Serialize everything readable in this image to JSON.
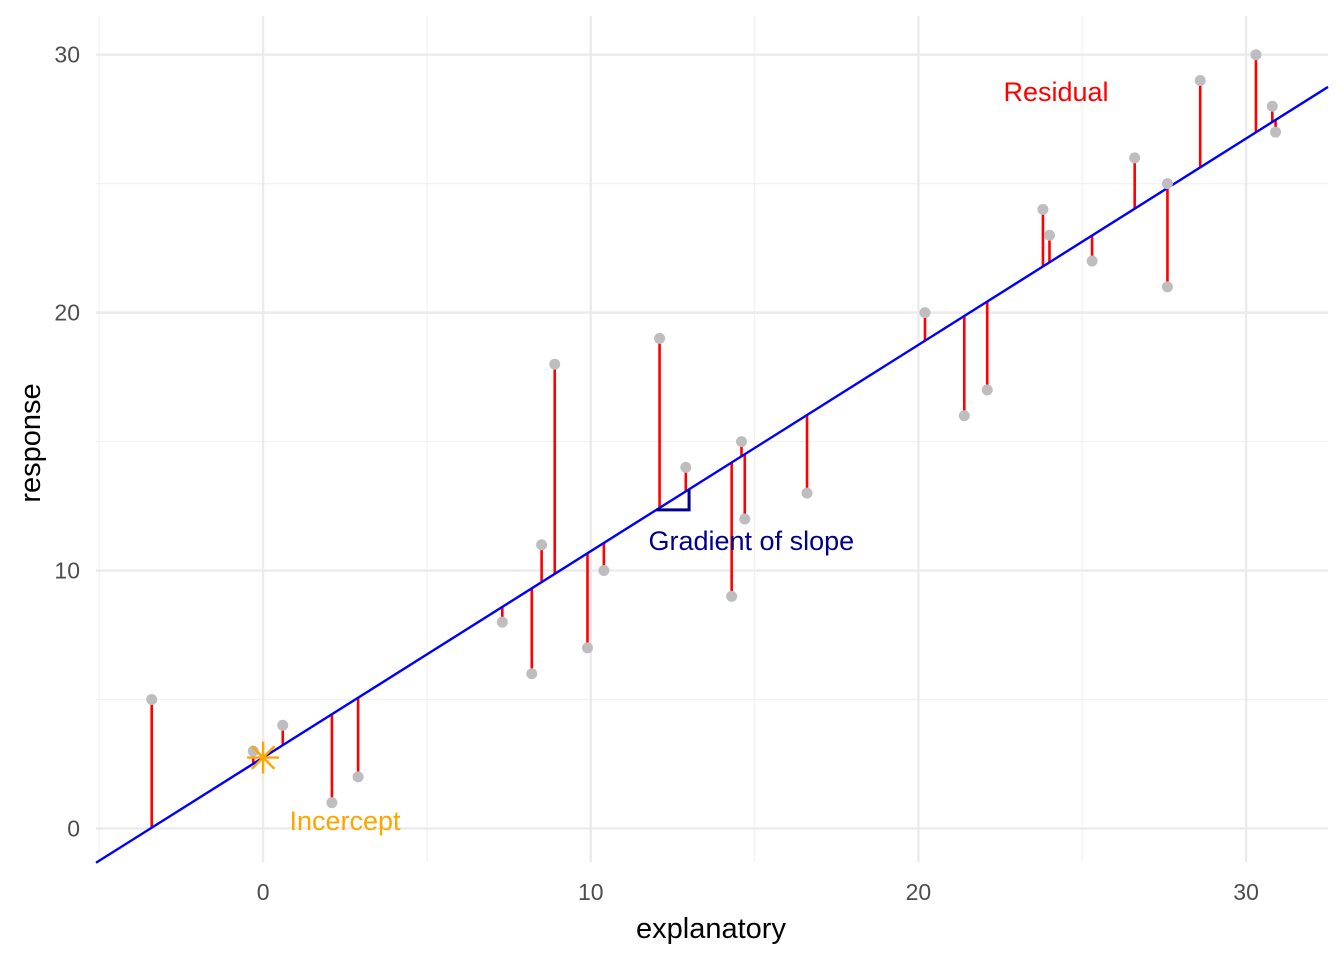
{
  "chart_data": {
    "type": "scatter",
    "xlabel": "explanatory",
    "ylabel": "response",
    "xlim": [
      -5.1,
      32.5
    ],
    "ylim": [
      -1.3,
      31.5
    ],
    "x_ticks": [
      0,
      10,
      20,
      30
    ],
    "y_ticks": [
      0,
      10,
      20,
      30
    ],
    "x_tick_labels": [
      "0",
      "10",
      "20",
      "30"
    ],
    "y_tick_labels": [
      "0",
      "10",
      "20",
      "30"
    ],
    "grid": true,
    "regression_line": {
      "intercept": 2.75,
      "slope": 0.8
    },
    "points": [
      {
        "x": -3.4,
        "y": 5
      },
      {
        "x": -0.3,
        "y": 3
      },
      {
        "x": 0.6,
        "y": 4
      },
      {
        "x": 2.1,
        "y": 1
      },
      {
        "x": 2.9,
        "y": 2
      },
      {
        "x": 7.3,
        "y": 8
      },
      {
        "x": 8.2,
        "y": 6
      },
      {
        "x": 8.5,
        "y": 11
      },
      {
        "x": 8.9,
        "y": 18
      },
      {
        "x": 9.9,
        "y": 7
      },
      {
        "x": 10.4,
        "y": 10
      },
      {
        "x": 12.1,
        "y": 19
      },
      {
        "x": 12.9,
        "y": 14
      },
      {
        "x": 14.3,
        "y": 9
      },
      {
        "x": 14.6,
        "y": 15
      },
      {
        "x": 14.7,
        "y": 12
      },
      {
        "x": 16.6,
        "y": 13
      },
      {
        "x": 20.2,
        "y": 20
      },
      {
        "x": 21.4,
        "y": 16
      },
      {
        "x": 22.1,
        "y": 17
      },
      {
        "x": 23.8,
        "y": 24
      },
      {
        "x": 24.0,
        "y": 23
      },
      {
        "x": 25.3,
        "y": 22
      },
      {
        "x": 26.6,
        "y": 26
      },
      {
        "x": 27.6,
        "y": 25
      },
      {
        "x": 27.6,
        "y": 21
      },
      {
        "x": 28.6,
        "y": 29
      },
      {
        "x": 30.3,
        "y": 30
      },
      {
        "x": 30.8,
        "y": 28
      },
      {
        "x": 30.9,
        "y": 27
      }
    ],
    "intercept_marker": {
      "x": 0,
      "y": 2.75
    },
    "slope_triangle": {
      "x0": 12.0,
      "x1": 13.0
    },
    "annotations": {
      "residual": {
        "text": "Residual",
        "x": 24.2,
        "y": 28.2
      },
      "slope": {
        "text": "Gradient of slope",
        "x": 14.9,
        "y": 10.8
      },
      "intercept": {
        "text": "Incercept",
        "x": 2.5,
        "y": -0.05
      }
    },
    "colors": {
      "points": "#bebebe",
      "residual": "#ff0000",
      "line": "#0000ff",
      "intercept": "#ffa500",
      "slope": "#00008b",
      "grid_major": "#ebebeb",
      "grid_minor": "#f2f2f2"
    }
  }
}
